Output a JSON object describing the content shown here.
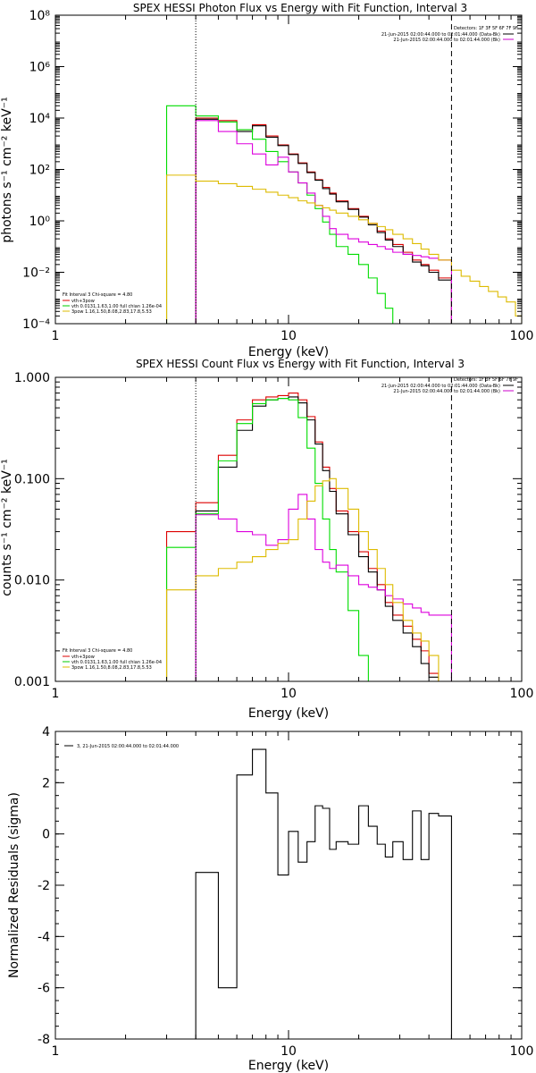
{
  "page": {
    "background": "#ffffff"
  },
  "chart_data": [
    {
      "type": "line",
      "title": "SPEX HESSI Photon Flux vs Energy with Fit Function, Interval 3",
      "xlabel": "Energy (keV)",
      "ylabel": "photons s⁻¹ cm⁻² keV⁻¹",
      "xscale": "log",
      "yscale": "log",
      "xlim": [
        1,
        100
      ],
      "ylim": [
        0.0001,
        100000000
      ],
      "x_ticks": [
        1,
        10,
        100
      ],
      "x_tick_labels": [
        "1",
        "10",
        "100"
      ],
      "y_ticks": [
        0.0001,
        0.01,
        1,
        100,
        10000,
        1000000,
        100000000
      ],
      "y_tick_labels": [
        "10⁻⁴",
        "10⁻²",
        "10⁰",
        "10²",
        "10⁴",
        "10⁶",
        "10⁸"
      ],
      "detectors_label": "Detectors: 1F 3F 5F 6F 7F 9F",
      "time_lines": [
        {
          "text": "21-Jun-2015 02:00:44.000 to 02:01:44.000 (Data-Bk)",
          "color": "#000000"
        },
        {
          "text": "21-Jun-2015 02:00:44.000 to 02:01:44.000 (Bk)",
          "color": "#cc00cc"
        }
      ],
      "fit_info": {
        "header": "Fit Interval 3   Chi-square = 4.80",
        "lines": [
          {
            "text": "vth+3pow",
            "color": "#dd0000"
          },
          {
            "text": "vth 0.0131,1.63,1.00  full chian 1.26e-04",
            "color": "#00cc00"
          },
          {
            "text": "3pow 1.16,1.50,8.08,2.83,17.8,5.53",
            "color": "#ddbb00"
          }
        ]
      },
      "vlines": [
        {
          "x": 4.0,
          "style": "dotted",
          "color": "#000000"
        },
        {
          "x": 50.0,
          "style": "dashed",
          "color": "#000000"
        }
      ],
      "series": [
        {
          "color": "#dd0000",
          "edges": [
            4.0,
            5.0,
            6.0,
            7.0,
            8.0,
            9.0,
            10.0,
            11.0,
            12.0,
            13.0,
            14.0,
            15.0,
            16.0,
            18.0,
            20.0,
            22.0,
            24.0,
            26.0,
            28.0,
            31.0,
            34.0,
            37.0,
            40.0,
            44.0,
            50.0
          ],
          "values": [
            10000,
            8000,
            3500,
            5500,
            2000,
            900,
            400,
            180,
            80,
            40,
            20,
            12,
            6,
            3,
            1.5,
            0.8,
            0.4,
            0.2,
            0.12,
            0.06,
            0.03,
            0.02,
            0.012,
            0.006
          ]
        },
        {
          "color": "#000000",
          "edges": [
            4.0,
            5.0,
            6.0,
            7.0,
            8.0,
            9.0,
            10.0,
            11.0,
            12.0,
            13.0,
            14.0,
            15.0,
            16.0,
            18.0,
            20.0,
            22.0,
            24.0,
            26.0,
            28.0,
            31.0,
            34.0,
            37.0,
            40.0,
            44.0,
            50.0
          ],
          "values": [
            9000,
            7000,
            3000,
            5000,
            1800,
            850,
            380,
            170,
            75,
            38,
            18,
            11,
            5.5,
            2.8,
            1.4,
            0.7,
            0.35,
            0.18,
            0.1,
            0.05,
            0.025,
            0.018,
            0.01,
            0.005
          ]
        },
        {
          "color": "#00dd00",
          "edges": [
            3.0,
            4.0,
            5.0,
            6.0,
            7.0,
            8.0,
            9.0,
            10.0,
            11.0,
            12.0,
            13.0,
            14.0,
            15.0,
            16.0,
            18.0,
            20.0,
            22.0,
            24.0,
            26.0,
            28.0,
            30.0
          ],
          "values": [
            30000,
            12000,
            7000,
            3500,
            1500,
            500,
            200,
            80,
            30,
            10,
            3,
            0.9,
            0.3,
            0.1,
            0.05,
            0.02,
            0.006,
            0.0015,
            0.0004,
            0.0001
          ]
        },
        {
          "color": "#dd00dd",
          "edges": [
            4.0,
            5.0,
            6.0,
            7.0,
            8.0,
            9.0,
            10.0,
            11.0,
            12.0,
            13.0,
            14.0,
            15.0,
            16.0,
            18.0,
            20.0,
            22.0,
            24.0,
            26.0,
            28.0,
            31.0,
            34.0,
            37.0,
            40.0,
            44.0,
            50.0
          ],
          "values": [
            8000,
            3000,
            1000,
            400,
            150,
            300,
            80,
            30,
            12,
            4,
            1.5,
            0.5,
            0.3,
            0.2,
            0.15,
            0.12,
            0.1,
            0.08,
            0.06,
            0.05,
            0.045,
            0.04,
            0.035,
            0.03
          ]
        },
        {
          "color": "#ddbb00",
          "edges": [
            3.0,
            4.0,
            5.0,
            6.0,
            7.0,
            8.0,
            9.0,
            10.0,
            11.0,
            12.0,
            13.0,
            14.0,
            15.0,
            16.0,
            18.0,
            20.0,
            22.0,
            24.0,
            26.0,
            28.0,
            31.0,
            34.0,
            37.0,
            40.0,
            44.0,
            50.0,
            55.0,
            60.0,
            66.0,
            72.0,
            79.0,
            86.0,
            94.0,
            100.0
          ],
          "values": [
            60,
            35,
            28,
            22,
            17,
            13,
            10,
            8,
            6,
            5,
            4,
            3.2,
            2.6,
            2,
            1.5,
            1.1,
            0.8,
            0.6,
            0.45,
            0.3,
            0.2,
            0.13,
            0.08,
            0.05,
            0.03,
            0.012,
            0.007,
            0.0045,
            0.0028,
            0.0018,
            0.0011,
            0.0007,
            0.0002
          ]
        }
      ]
    },
    {
      "type": "line",
      "title": "SPEX HESSI Count Flux vs Energy with Fit Function, Interval 3",
      "xlabel": "Energy (keV)",
      "ylabel": "counts s⁻¹ cm⁻² keV⁻¹",
      "xscale": "log",
      "yscale": "log",
      "xlim": [
        1,
        100
      ],
      "ylim": [
        0.001,
        1.0
      ],
      "x_ticks": [
        1,
        10,
        100
      ],
      "x_tick_labels": [
        "1",
        "10",
        "100"
      ],
      "y_ticks": [
        0.001,
        0.01,
        0.1,
        1.0
      ],
      "y_tick_labels": [
        "0.001",
        "0.010",
        "0.100",
        "1.000"
      ],
      "detectors_label": "Detectors: 1F 3F 5F 6F 7F 9F",
      "time_lines": [
        {
          "text": "21-Jun-2015 02:00:44.000 to 02:01:44.000 (Data-Bk)",
          "color": "#000000"
        },
        {
          "text": "21-Jun-2015 02:00:44.000 to 02:01:44.000 (Bk)",
          "color": "#cc00cc"
        }
      ],
      "fit_info": {
        "header": "Fit Interval 3   Chi-square = 4.80",
        "lines": [
          {
            "text": "vth+3pow",
            "color": "#dd0000"
          },
          {
            "text": "vth 0.0131,1.63,1.00  full chian 1.26e-04",
            "color": "#00cc00"
          },
          {
            "text": "3pow 1.16,1.50,8.08,2.83,17.8,5.53",
            "color": "#ddbb00"
          }
        ]
      },
      "vlines": [
        {
          "x": 4.0,
          "style": "dotted",
          "color": "#000000"
        },
        {
          "x": 50.0,
          "style": "dashed",
          "color": "#000000"
        }
      ],
      "series": [
        {
          "color": "#dd0000",
          "edges": [
            3.0,
            4.0,
            5.0,
            6.0,
            7.0,
            8.0,
            9.0,
            10.0,
            11.0,
            12.0,
            13.0,
            14.0,
            15.0,
            16.0,
            18.0,
            20.0,
            22.0,
            24.0,
            26.0,
            28.0,
            31.0,
            34.0,
            37.0,
            40.0,
            44.0,
            50.0
          ],
          "values": [
            0.03,
            0.058,
            0.17,
            0.38,
            0.6,
            0.64,
            0.66,
            0.7,
            0.6,
            0.41,
            0.23,
            0.13,
            0.08,
            0.048,
            0.03,
            0.019,
            0.013,
            0.009,
            0.006,
            0.0045,
            0.0035,
            0.0026,
            0.002,
            0.0012,
            0.001
          ]
        },
        {
          "color": "#000000",
          "edges": [
            4.0,
            5.0,
            6.0,
            7.0,
            8.0,
            9.0,
            10.0,
            11.0,
            12.0,
            13.0,
            14.0,
            15.0,
            16.0,
            18.0,
            20.0,
            22.0,
            24.0,
            26.0,
            28.0,
            31.0,
            34.0,
            37.0,
            40.0,
            44.0,
            50.0
          ],
          "values": [
            0.048,
            0.13,
            0.3,
            0.52,
            0.6,
            0.62,
            0.64,
            0.56,
            0.38,
            0.22,
            0.12,
            0.075,
            0.045,
            0.028,
            0.017,
            0.012,
            0.008,
            0.0055,
            0.004,
            0.003,
            0.0022,
            0.0015,
            0.0011,
            0.001
          ]
        },
        {
          "color": "#00dd00",
          "edges": [
            3.0,
            4.0,
            5.0,
            6.0,
            7.0,
            8.0,
            9.0,
            10.0,
            11.0,
            12.0,
            13.0,
            14.0,
            15.0,
            16.0,
            18.0,
            20.0,
            22.0
          ],
          "values": [
            0.021,
            0.045,
            0.15,
            0.35,
            0.55,
            0.6,
            0.62,
            0.6,
            0.4,
            0.2,
            0.09,
            0.04,
            0.02,
            0.012,
            0.005,
            0.0018
          ]
        },
        {
          "color": "#dd00dd",
          "edges": [
            4.0,
            5.0,
            6.0,
            7.0,
            8.0,
            9.0,
            10.0,
            11.0,
            12.0,
            13.0,
            14.0,
            15.0,
            16.0,
            18.0,
            20.0,
            22.0,
            24.0,
            26.0,
            28.0,
            31.0,
            34.0,
            37.0,
            40.0,
            44.0,
            50.0
          ],
          "values": [
            0.044,
            0.04,
            0.03,
            0.028,
            0.022,
            0.025,
            0.05,
            0.07,
            0.04,
            0.02,
            0.015,
            0.013,
            0.014,
            0.011,
            0.009,
            0.0085,
            0.008,
            0.007,
            0.0065,
            0.0058,
            0.0053,
            0.0048,
            0.0045,
            0.0045
          ]
        },
        {
          "color": "#ddbb00",
          "edges": [
            3.0,
            4.0,
            5.0,
            6.0,
            7.0,
            8.0,
            9.0,
            10.0,
            11.0,
            12.0,
            13.0,
            14.0,
            15.0,
            16.0,
            18.0,
            20.0,
            22.0,
            24.0,
            26.0,
            28.0,
            31.0,
            34.0,
            37.0,
            40.0,
            44.0,
            50.0
          ],
          "values": [
            0.008,
            0.011,
            0.013,
            0.015,
            0.017,
            0.02,
            0.023,
            0.025,
            0.04,
            0.06,
            0.085,
            0.095,
            0.1,
            0.08,
            0.05,
            0.03,
            0.02,
            0.013,
            0.009,
            0.006,
            0.004,
            0.003,
            0.0025,
            0.0018,
            0.001
          ]
        }
      ]
    },
    {
      "type": "line",
      "title": "",
      "xlabel": "Energy (keV)",
      "ylabel": "Normalized Residuals (sigma)",
      "xscale": "log",
      "yscale": "linear",
      "xlim": [
        1,
        100
      ],
      "ylim": [
        -8,
        4
      ],
      "x_ticks": [
        1,
        10,
        100
      ],
      "x_tick_labels": [
        "1",
        "10",
        "100"
      ],
      "y_ticks": [
        -8,
        -6,
        -4,
        -2,
        0,
        2,
        4
      ],
      "y_tick_labels": [
        "-8",
        "-6",
        "-4",
        "-2",
        "0",
        "2",
        "4"
      ],
      "legend_text": "3, 21-Jun-2015 02:00:44.000 to 02:01:44.000",
      "series": [
        {
          "color": "#000000",
          "edges": [
            4.0,
            5.0,
            6.0,
            7.0,
            8.0,
            9.0,
            10.0,
            11.0,
            12.0,
            13.0,
            14.0,
            15.0,
            16.0,
            18.0,
            20.0,
            22.0,
            24.0,
            26.0,
            28.0,
            31.0,
            34.0,
            37.0,
            40.0,
            44.0,
            50.0
          ],
          "values": [
            -1.5,
            -6.0,
            2.3,
            3.3,
            1.6,
            -1.6,
            0.1,
            -1.1,
            -0.3,
            1.1,
            1.0,
            -0.6,
            -0.3,
            -0.4,
            1.1,
            0.3,
            -0.4,
            -0.9,
            -0.3,
            -1.0,
            0.9,
            -1.0,
            0.8,
            0.7
          ]
        }
      ]
    }
  ]
}
